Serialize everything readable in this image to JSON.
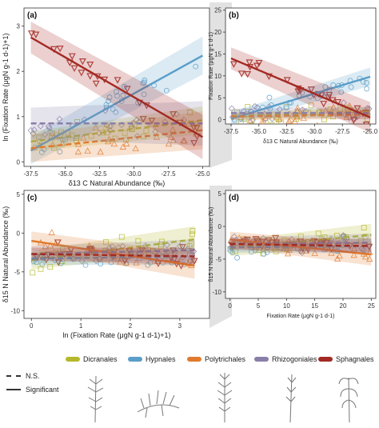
{
  "colors": {
    "Dicranales": "#b5b82c",
    "Hypnales": "#5a9ec9",
    "Polytrichales": "#e07b2e",
    "Rhizogoniales": "#8a7fa8",
    "Sphagnales": "#a32a23",
    "background": "#ffffff"
  },
  "legend": {
    "linetypes": [
      {
        "label": "N.S.",
        "style": "dashed"
      },
      {
        "label": "Significant",
        "style": "solid"
      }
    ],
    "orders": [
      {
        "name": "Dicranales",
        "icon": "moss-illustration-icon"
      },
      {
        "name": "Hypnales",
        "icon": "moss-illustration-icon"
      },
      {
        "name": "Polytrichales",
        "icon": "moss-illustration-icon"
      },
      {
        "name": "Rhizogoniales",
        "icon": "moss-illustration-icon"
      },
      {
        "name": "Sphagnales",
        "icon": "moss-illustration-icon"
      }
    ]
  },
  "chart_data": [
    {
      "id": "a",
      "panel_label": "(a)",
      "type": "scatter",
      "xlabel": "δ13 C Natural Abundance (‰)",
      "ylabel": "ln (Fixation Rate (μgN g-1 d-1)+1)",
      "xlim": [
        -38,
        -24.5
      ],
      "ylim": [
        -0.1,
        3.4
      ],
      "xticks": [
        -37.5,
        -35.0,
        -32.5,
        -30.0,
        -27.5,
        -25.0
      ],
      "xtick_labels": [
        "-37.5",
        "-35.0",
        "-32.5",
        "-30.0",
        "-27.5",
        "-25.0"
      ],
      "yticks": [
        0,
        1,
        2,
        3
      ],
      "ytick_labels": [
        "0",
        "1",
        "2",
        "3"
      ],
      "fits": [
        {
          "series": "Dicranales",
          "linetype": "dashed",
          "x": [
            -37.5,
            -25.0
          ],
          "y": [
            0.45,
            0.92
          ],
          "ci_halfwidth": 0.22
        },
        {
          "series": "Hypnales",
          "linetype": "solid",
          "x": [
            -37.5,
            -25.0
          ],
          "y": [
            0.25,
            2.35
          ],
          "ci_halfwidth": 0.3
        },
        {
          "series": "Polytrichales",
          "linetype": "dashed",
          "x": [
            -37.5,
            -25.0
          ],
          "y": [
            0.3,
            0.7
          ],
          "ci_halfwidth": 0.3
        },
        {
          "series": "Rhizogoniales",
          "linetype": "dashed",
          "x": [
            -37.5,
            -25.0
          ],
          "y": [
            0.85,
            0.85
          ],
          "ci_halfwidth": 0.35
        },
        {
          "series": "Sphagnales",
          "linetype": "solid",
          "x": [
            -37.5,
            -25.0
          ],
          "y": [
            2.75,
            0.55
          ],
          "ci_halfwidth": 0.35
        }
      ]
    },
    {
      "id": "b",
      "panel_label": "(b)",
      "type": "scatter",
      "xlabel": "δ13 C Natural Abundance (‰)",
      "ylabel": "Fixation Rate (μgN g-1 d-1)",
      "xlim": [
        -38,
        -24.5
      ],
      "ylim": [
        -1,
        25.5
      ],
      "xticks": [
        -37.5,
        -35.0,
        -32.5,
        -30.0,
        -27.5,
        -25.0
      ],
      "xtick_labels": [
        "-37.5",
        "-35.0",
        "-32.5",
        "-30.0",
        "-27.5",
        "-25.0"
      ],
      "yticks": [
        0,
        5,
        10,
        15,
        20,
        25
      ],
      "ytick_labels": [
        "0",
        "5",
        "10",
        "15",
        "20",
        "25"
      ],
      "fits": [
        {
          "series": "Dicranales",
          "linetype": "dashed",
          "x": [
            -37.5,
            -25.0
          ],
          "y": [
            0.8,
            1.8
          ],
          "ci_halfwidth": 0.8
        },
        {
          "series": "Hypnales",
          "linetype": "solid",
          "x": [
            -37.5,
            -25.0
          ],
          "y": [
            0.2,
            9.8
          ],
          "ci_halfwidth": 1.5
        },
        {
          "series": "Polytrichales",
          "linetype": "dashed",
          "x": [
            -37.5,
            -25.0
          ],
          "y": [
            0.7,
            1.2
          ],
          "ci_halfwidth": 0.8
        },
        {
          "series": "Rhizogoniales",
          "linetype": "dashed",
          "x": [
            -37.5,
            -25.0
          ],
          "y": [
            1.5,
            1.5
          ],
          "ci_halfwidth": 1.0
        },
        {
          "series": "Sphagnales",
          "linetype": "solid",
          "x": [
            -37.5,
            -25.0
          ],
          "y": [
            14.0,
            0.5
          ],
          "ci_halfwidth": 2.5
        }
      ]
    },
    {
      "id": "c",
      "panel_label": "(c)",
      "type": "scatter",
      "xlabel": "ln (Fixation Rate (μgN g-1 d-1)+1)",
      "ylabel": "δ15 N Natural Abundance (‰)",
      "xlim": [
        -0.15,
        3.6
      ],
      "ylim": [
        -11,
        5.5
      ],
      "xticks": [
        0,
        1,
        2,
        3
      ],
      "xtick_labels": [
        "0",
        "1",
        "2",
        "3"
      ],
      "yticks": [
        -10,
        -5,
        0,
        5
      ],
      "ytick_labels": [
        "-10",
        "-5",
        "0",
        "5"
      ],
      "fits": [
        {
          "series": "Dicranales",
          "linetype": "dashed",
          "x": [
            0,
            3.3
          ],
          "y": [
            -3.5,
            -0.8
          ],
          "ci_halfwidth": 1.2
        },
        {
          "series": "Hypnales",
          "linetype": "dashed",
          "x": [
            0,
            3.3
          ],
          "y": [
            -3.3,
            -3.0
          ],
          "ci_halfwidth": 0.8
        },
        {
          "series": "Polytrichales",
          "linetype": "solid",
          "x": [
            0,
            3.3
          ],
          "y": [
            -1.0,
            -4.2
          ],
          "ci_halfwidth": 1.2
        },
        {
          "series": "Rhizogoniales",
          "linetype": "dashed",
          "x": [
            0,
            3.3
          ],
          "y": [
            -2.7,
            -2.2
          ],
          "ci_halfwidth": 1.0
        },
        {
          "series": "Sphagnales",
          "linetype": "dashed",
          "x": [
            0,
            3.3
          ],
          "y": [
            -2.7,
            -3.0
          ],
          "ci_halfwidth": 0.8
        }
      ]
    },
    {
      "id": "d",
      "panel_label": "(d)",
      "type": "scatter",
      "xlabel": "Fixation Rate (μgN g-1 d-1)",
      "ylabel": "δ15 N Natural Abundance (‰)",
      "xlim": [
        -0.8,
        25.8
      ],
      "ylim": [
        -11,
        5.5
      ],
      "xticks": [
        0,
        5,
        10,
        15,
        20,
        25
      ],
      "xtick_labels": [
        "0",
        "5",
        "10",
        "15",
        "20",
        "25"
      ],
      "yticks": [
        -10,
        -5,
        0,
        5
      ],
      "ytick_labels": [
        "-10",
        "-5",
        "0",
        "5"
      ],
      "fits": [
        {
          "series": "Dicranales",
          "linetype": "dashed",
          "x": [
            0,
            25
          ],
          "y": [
            -3.3,
            -1.3
          ],
          "ci_halfwidth": 1.2
        },
        {
          "series": "Hypnales",
          "linetype": "dashed",
          "x": [
            0,
            25
          ],
          "y": [
            -3.2,
            -3.0
          ],
          "ci_halfwidth": 0.8
        },
        {
          "series": "Polytrichales",
          "linetype": "solid",
          "x": [
            0,
            25
          ],
          "y": [
            -2.0,
            -4.3
          ],
          "ci_halfwidth": 1.2
        },
        {
          "series": "Rhizogoniales",
          "linetype": "dashed",
          "x": [
            0,
            25
          ],
          "y": [
            -2.7,
            -2.5
          ],
          "ci_halfwidth": 1.0
        },
        {
          "series": "Sphagnales",
          "linetype": "dashed",
          "x": [
            0,
            25
          ],
          "y": [
            -2.7,
            -3.0
          ],
          "ci_halfwidth": 0.8
        }
      ]
    }
  ]
}
